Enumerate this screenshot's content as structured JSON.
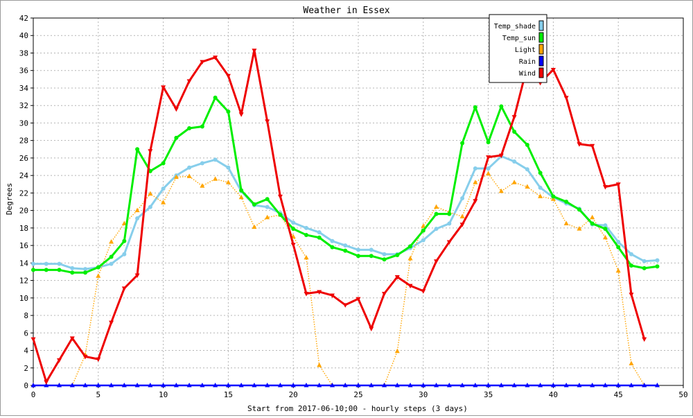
{
  "chart_data": {
    "type": "line",
    "title": "Weather in Essex",
    "xlabel": "Start from 2017-06-10;00 - hourly steps (3 days)",
    "ylabel": "Degrees",
    "xlim": [
      0,
      50
    ],
    "ylim": [
      0,
      42
    ],
    "x_ticks": [
      "0",
      "5",
      "10",
      "15",
      "20",
      "25",
      "30",
      "35",
      "40",
      "45",
      "50"
    ],
    "y_ticks": [
      "0",
      "2",
      "4",
      "6",
      "8",
      "10",
      "12",
      "14",
      "16",
      "18",
      "20",
      "22",
      "24",
      "26",
      "28",
      "30",
      "32",
      "34",
      "36",
      "38",
      "40",
      "42"
    ],
    "grid": true,
    "legend_position": "top-right",
    "series": [
      {
        "name": "Temp_shade",
        "color": "#87ceeb",
        "style": "solid",
        "marker": "circle",
        "values": [
          13.9,
          13.9,
          13.9,
          13.4,
          13.3,
          13.5,
          13.9,
          15.0,
          19.1,
          20.4,
          22.5,
          24.0,
          24.9,
          25.4,
          25.8,
          24.9,
          22.2,
          20.6,
          20.4,
          19.7,
          18.6,
          18.0,
          17.5,
          16.5,
          16.0,
          15.5,
          15.5,
          15.0,
          15.0,
          15.7,
          16.6,
          17.9,
          18.5,
          21.4,
          24.8,
          24.8,
          26.2,
          25.6,
          24.7,
          22.6,
          21.5,
          20.8,
          20.2,
          18.4,
          18.3,
          16.4,
          15.0,
          14.2,
          14.3
        ]
      },
      {
        "name": "Temp_sun",
        "color": "#00ee00",
        "style": "solid",
        "marker": "circle",
        "values": [
          13.2,
          13.2,
          13.2,
          12.9,
          12.9,
          13.5,
          14.7,
          16.5,
          27.0,
          24.5,
          25.4,
          28.3,
          29.4,
          29.6,
          32.9,
          31.3,
          22.3,
          20.7,
          21.3,
          19.5,
          17.9,
          17.2,
          16.9,
          15.8,
          15.4,
          14.8,
          14.8,
          14.4,
          14.9,
          15.9,
          17.7,
          19.6,
          19.6,
          27.7,
          31.8,
          27.8,
          31.9,
          29.0,
          27.5,
          24.3,
          21.6,
          21.0,
          20.1,
          18.5,
          17.9,
          15.8,
          13.7,
          13.4,
          13.6
        ]
      },
      {
        "name": "Light",
        "color": "#ffa500",
        "style": "dotted",
        "marker": "triangle-up",
        "values": [
          0,
          0,
          0,
          0,
          3.5,
          12.5,
          16.4,
          18.5,
          20.0,
          21.9,
          20.9,
          23.8,
          23.9,
          22.8,
          23.6,
          23.2,
          21.5,
          18.1,
          19.2,
          19.5,
          17.0,
          14.6,
          2.3,
          0,
          0,
          0,
          0,
          0,
          3.9,
          14.5,
          18.2,
          20.4,
          19.8,
          19.3,
          23.2,
          24.2,
          22.2,
          23.2,
          22.7,
          21.6,
          21.3,
          18.5,
          17.9,
          19.2,
          16.9,
          13.1,
          2.5,
          0
        ]
      },
      {
        "name": "Rain",
        "color": "#0000ff",
        "style": "solid",
        "marker": "triangle-up",
        "values": [
          0,
          0,
          0,
          0,
          0,
          0,
          0,
          0,
          0,
          0,
          0,
          0,
          0,
          0,
          0,
          0,
          0,
          0,
          0,
          0,
          0,
          0,
          0,
          0,
          0,
          0,
          0,
          0,
          0,
          0,
          0,
          0,
          0,
          0,
          0,
          0,
          0,
          0,
          0,
          0,
          0,
          0,
          0,
          0,
          0,
          0,
          0,
          0,
          0
        ]
      },
      {
        "name": "Wind",
        "color": "#ee0000",
        "style": "solid",
        "marker": "triangle-down",
        "values": [
          5.3,
          0.4,
          2.9,
          5.4,
          3.3,
          3.0,
          7.2,
          11.1,
          12.6,
          26.8,
          34.1,
          31.6,
          34.8,
          37.0,
          37.5,
          35.4,
          31.0,
          38.3,
          30.2,
          21.6,
          16.1,
          10.5,
          10.7,
          10.3,
          9.2,
          9.9,
          6.5,
          10.5,
          12.4,
          11.4,
          10.8,
          14.2,
          16.4,
          18.4,
          21.1,
          26.1,
          26.3,
          30.7,
          36.5,
          34.6,
          36.1,
          32.9,
          27.6,
          27.4,
          22.7,
          23.0,
          10.4,
          5.3
        ]
      }
    ]
  }
}
